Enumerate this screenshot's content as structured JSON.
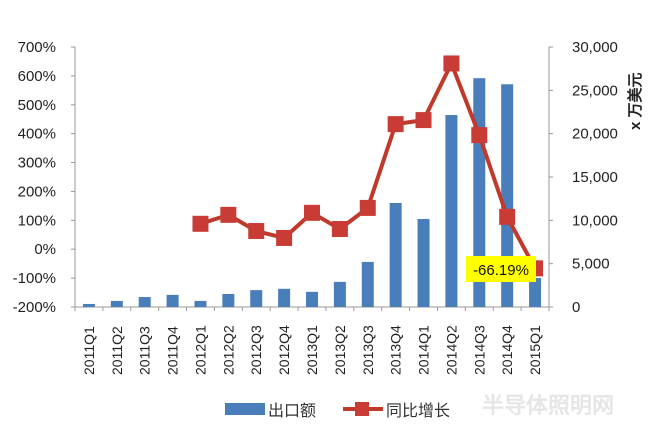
{
  "chart_data": {
    "type": "bar+line",
    "title": "",
    "categories": [
      "2011Q1",
      "2011Q2",
      "2011Q3",
      "2011Q4",
      "2012Q1",
      "2012Q2",
      "2012Q3",
      "2012Q4",
      "2013Q1",
      "2013Q2",
      "2013Q3",
      "2013Q4",
      "2014Q1",
      "2014Q2",
      "2014Q3",
      "2014Q4",
      "2015Q1"
    ],
    "series": [
      {
        "name": "出口额",
        "type": "bar",
        "axis": "right",
        "color": "#4a7ebb",
        "values": [
          350,
          700,
          1150,
          1400,
          700,
          1500,
          1950,
          2100,
          1750,
          2900,
          5200,
          12000,
          10150,
          22150,
          26400,
          25700,
          3350
        ]
      },
      {
        "name": "同比增长",
        "type": "line",
        "axis": "left",
        "color": "#c0392b",
        "values": [
          null,
          null,
          null,
          null,
          88,
          119,
          63,
          39,
          126,
          70,
          143,
          433,
          447,
          643,
          395,
          112,
          -66.19
        ]
      }
    ],
    "left_axis": {
      "ylim": [
        -200,
        700
      ],
      "ticks": [
        "700%",
        "600%",
        "500%",
        "400%",
        "300%",
        "200%",
        "100%",
        "0%",
        "-100%",
        "-200%"
      ]
    },
    "right_axis": {
      "ylim": [
        0,
        30000
      ],
      "ticks": [
        "30,000",
        "25,000",
        "20,000",
        "15,000",
        "10,000",
        "5,000",
        "0"
      ],
      "label": "x 万美元"
    },
    "annotations": [
      {
        "category": "2015Q1",
        "text": "-66.19%",
        "background": "#ffff00"
      }
    ],
    "legend": {
      "position": "bottom",
      "entries": [
        "出口额",
        "同比增长"
      ]
    },
    "grid": false
  },
  "labels": {
    "right_unit": "x 万美元",
    "annotation": "-66.19%",
    "legend_bar": "出口额",
    "legend_line": "同比增长",
    "watermark": "半导体照明网"
  }
}
